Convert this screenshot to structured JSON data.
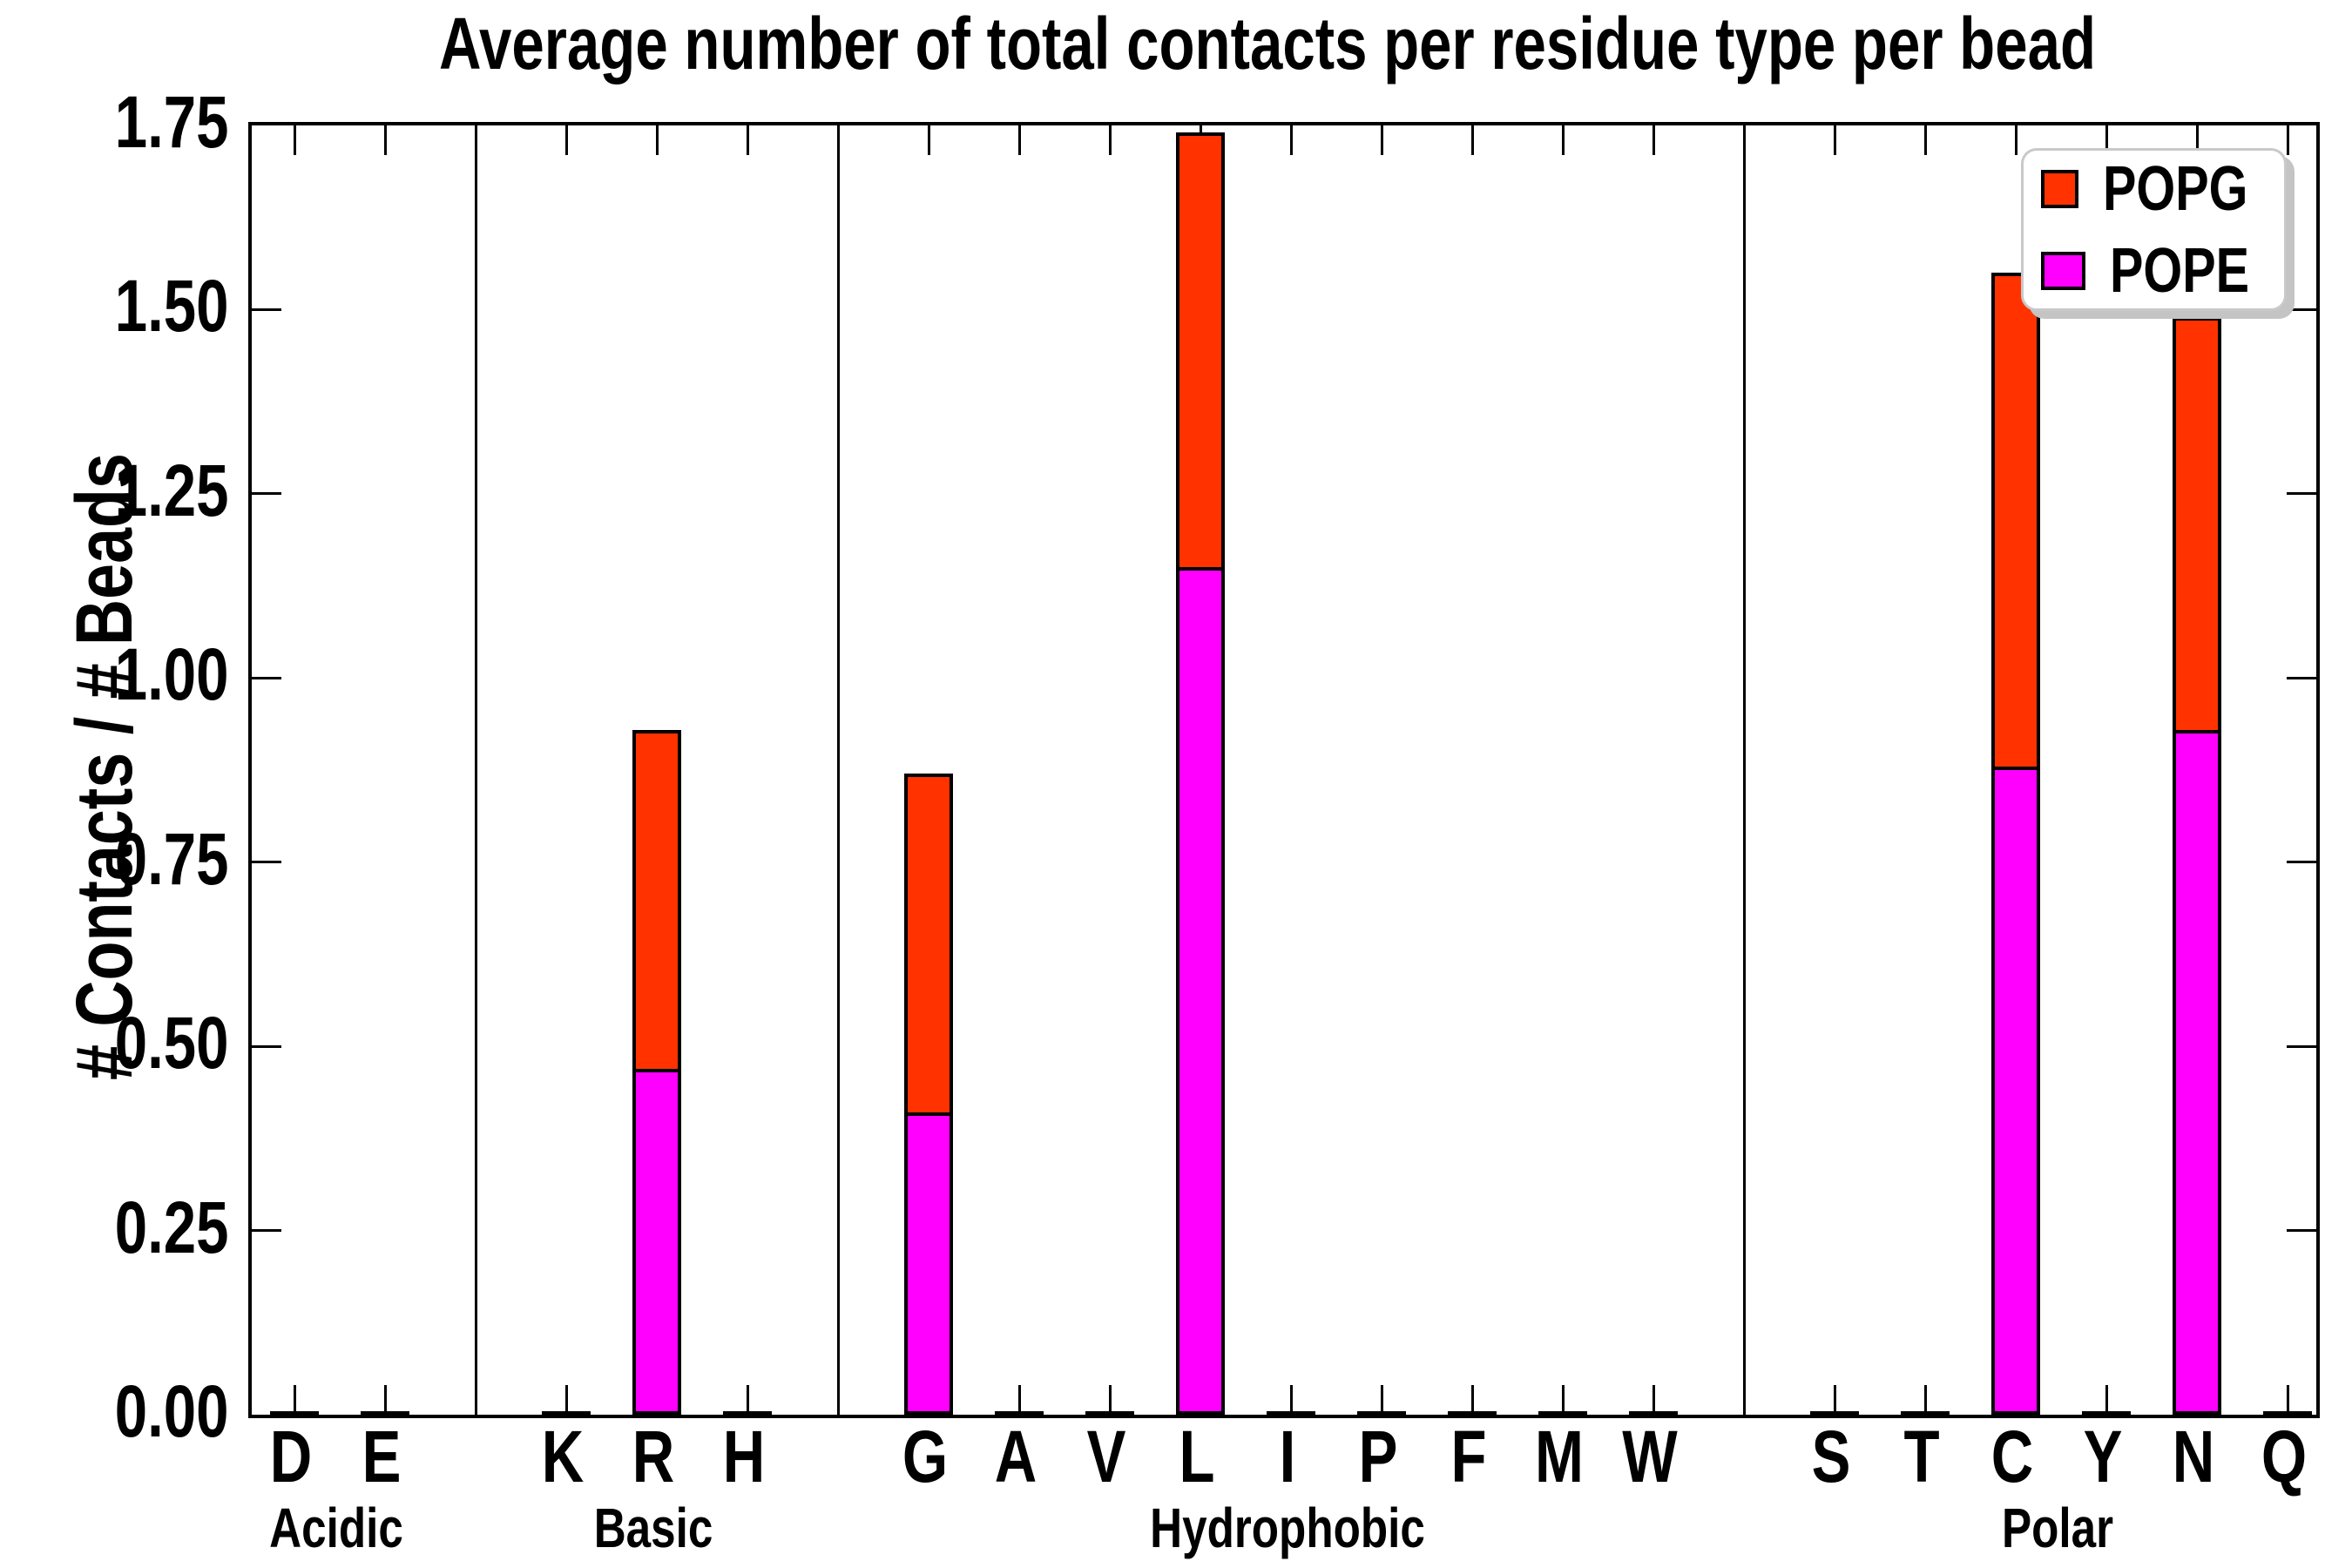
{
  "chart_data": {
    "type": "bar",
    "subtype": "stacked-vertical",
    "title": "Average number of total contacts per residue type per bead",
    "xlabel": "",
    "ylabel": "# Contacts / # Beads",
    "ylim": [
      0,
      1.75
    ],
    "ytick_labels": [
      "0.00",
      "0.25",
      "0.50",
      "0.75",
      "1.00",
      "1.25",
      "1.50",
      "1.75"
    ],
    "ytick_values": [
      0,
      0.25,
      0.5,
      0.75,
      1.0,
      1.25,
      1.5,
      1.75
    ],
    "grid": false,
    "groups": [
      {
        "label": "Acidic",
        "residues": [
          "D",
          "E"
        ]
      },
      {
        "label": "Basic",
        "residues": [
          "K",
          "R",
          "H"
        ]
      },
      {
        "label": "Hydrophobic",
        "residues": [
          "G",
          "A",
          "V",
          "L",
          "I",
          "P",
          "F",
          "M",
          "W"
        ]
      },
      {
        "label": "Polar",
        "residues": [
          "S",
          "T",
          "C",
          "Y",
          "N",
          "Q"
        ]
      }
    ],
    "categories": [
      "D",
      "E",
      "K",
      "R",
      "H",
      "G",
      "A",
      "V",
      "L",
      "I",
      "P",
      "F",
      "M",
      "W",
      "S",
      "T",
      "C",
      "Y",
      "N",
      "Q"
    ],
    "series": [
      {
        "name": "POPG",
        "color": "#ff3200",
        "stack_order": "top",
        "values": {
          "D": 0.002,
          "E": 0.002,
          "K": 0.002,
          "R": 0.46,
          "H": 0.002,
          "G": 0.46,
          "A": 0.002,
          "V": 0.002,
          "L": 0.59,
          "I": 0.002,
          "P": 0.002,
          "F": 0.002,
          "M": 0.002,
          "W": 0.002,
          "S": 0.002,
          "T": 0.002,
          "C": 0.67,
          "Y": 0.002,
          "N": 0.56,
          "Q": 0.002
        }
      },
      {
        "name": "POPE",
        "color": "#ff00ff",
        "stack_order": "bottom",
        "values": {
          "D": 0.002,
          "E": 0.002,
          "K": 0.002,
          "R": 0.47,
          "H": 0.002,
          "G": 0.41,
          "A": 0.002,
          "V": 0.002,
          "L": 1.15,
          "I": 0.002,
          "P": 0.002,
          "F": 0.002,
          "M": 0.002,
          "W": 0.002,
          "S": 0.002,
          "T": 0.002,
          "C": 0.88,
          "Y": 0.002,
          "N": 0.93,
          "Q": 0.002
        }
      }
    ],
    "stacked_totals": {
      "R": 0.93,
      "G": 0.87,
      "L": 1.74,
      "C": 1.55,
      "N": 1.49
    },
    "legend": {
      "position": "upper right",
      "entries": [
        {
          "label": "POPG",
          "color": "#ff3200"
        },
        {
          "label": "POPE",
          "color": "#ff00ff"
        }
      ]
    },
    "axis_color": "#000000",
    "background_color": "#ffffff"
  }
}
